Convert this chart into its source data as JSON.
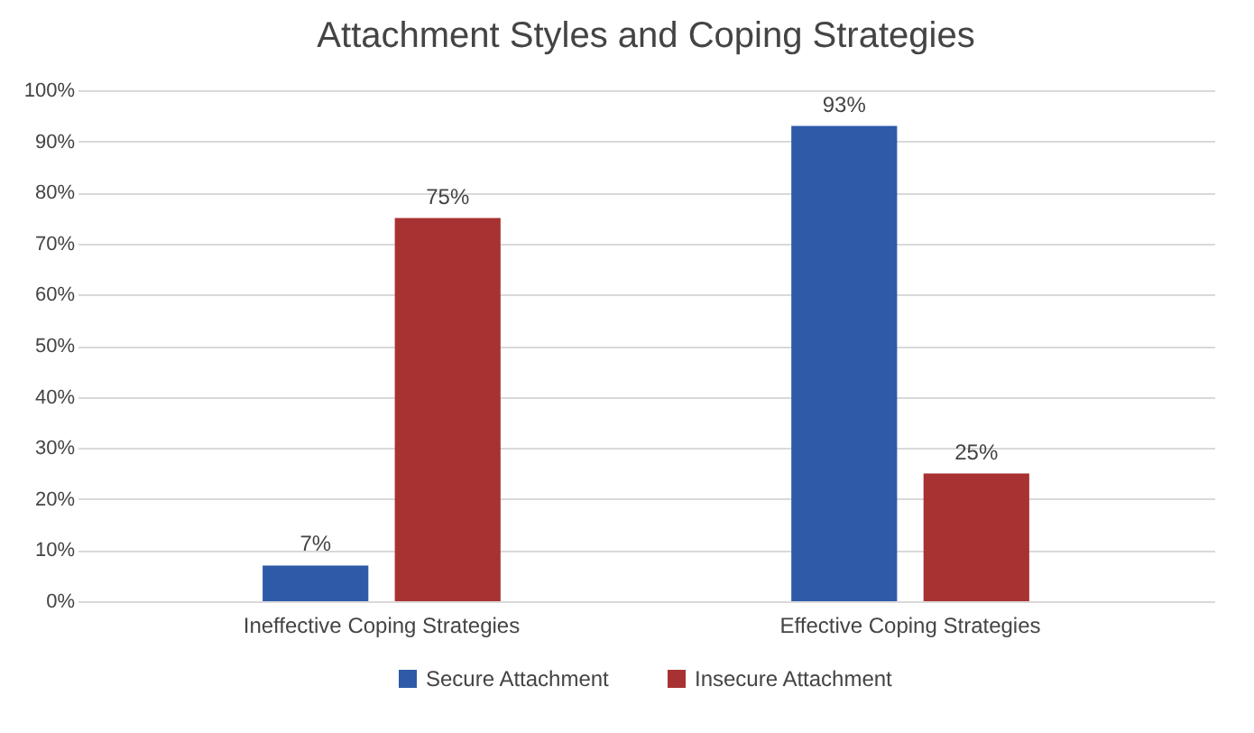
{
  "chart_data": {
    "type": "bar",
    "title": "Attachment Styles and Coping Strategies",
    "categories": [
      "Ineffective Coping Strategies",
      "Effective Coping Strategies"
    ],
    "series": [
      {
        "name": "Secure Attachment",
        "color": "#2e5aa8",
        "values": [
          7,
          93
        ],
        "value_labels": [
          "7%",
          "93%"
        ]
      },
      {
        "name": "Insecure Attachment",
        "color": "#a83232",
        "values": [
          75,
          25
        ],
        "value_labels": [
          "75%",
          "25%"
        ]
      }
    ],
    "ylim": [
      0,
      100
    ],
    "yticks": [
      {
        "value": 0,
        "label": "0%"
      },
      {
        "value": 10,
        "label": "10%"
      },
      {
        "value": 20,
        "label": "20%"
      },
      {
        "value": 30,
        "label": "30%"
      },
      {
        "value": 40,
        "label": "40%"
      },
      {
        "value": 50,
        "label": "50%"
      },
      {
        "value": 60,
        "label": "60%"
      },
      {
        "value": 70,
        "label": "70%"
      },
      {
        "value": 80,
        "label": "80%"
      },
      {
        "value": 90,
        "label": "90%"
      },
      {
        "value": 100,
        "label": "100%"
      }
    ],
    "grid": "y",
    "legend": "bottom"
  }
}
